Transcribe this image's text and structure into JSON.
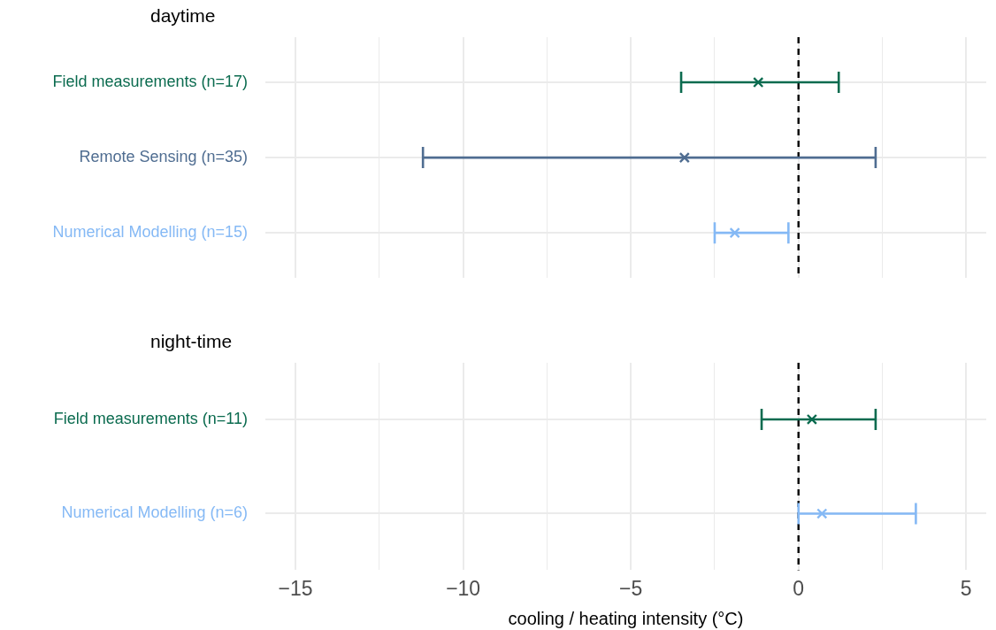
{
  "chart_data": [
    {
      "type": "scatter",
      "orientation": "horizontal",
      "title": "daytime",
      "categories": [
        "Field measurements (n=17)",
        "Remote Sensing (n=35)",
        "Numerical Modelling (n=15)"
      ],
      "values": [
        -1.2,
        -3.4,
        -1.9
      ],
      "errors": [
        [
          -3.5,
          1.2
        ],
        [
          -11.2,
          2.3
        ],
        [
          -2.5,
          -0.3
        ]
      ],
      "colors": [
        "#0b6b4f",
        "#4f6d91",
        "#85b9f5"
      ],
      "xlim": [
        -15.9,
        5.6
      ],
      "xticks": [
        -15,
        {
          "value": -12.5,
          "label": null
        },
        -10,
        {
          "value": -7.5,
          "label": null
        },
        -5,
        {
          "value": -2.5,
          "label": null
        },
        0,
        {
          "value": 2.5,
          "label": null
        },
        5
      ],
      "grid": true,
      "marker": "cross",
      "tick_labels": "y",
      "ref_lines": [
        {
          "axis": "x",
          "value": 0,
          "line_style": "dashed",
          "color": "#000000"
        }
      ]
    },
    {
      "type": "scatter",
      "orientation": "horizontal",
      "title": "night-time",
      "xlabel": "cooling / heating intensity (°C)",
      "categories": [
        "Field measurements (n=11)",
        "Numerical Modelling (n=6)"
      ],
      "values": [
        0.4,
        0.7
      ],
      "errors": [
        [
          -1.1,
          2.3
        ],
        [
          0,
          3.5
        ]
      ],
      "colors": [
        "#0b6b4f",
        "#85b9f5"
      ],
      "xlim": [
        -15.9,
        5.6
      ],
      "xticks": [
        -15,
        {
          "value": -12.5,
          "label": null
        },
        -10,
        {
          "value": -7.5,
          "label": null
        },
        -5,
        {
          "value": -2.5,
          "label": null
        },
        0,
        {
          "value": 2.5,
          "label": null
        },
        5
      ],
      "grid": true,
      "marker": "cross",
      "ref_lines": [
        {
          "axis": "x",
          "value": 0,
          "line_style": "dashed",
          "color": "#000000"
        }
      ]
    }
  ]
}
